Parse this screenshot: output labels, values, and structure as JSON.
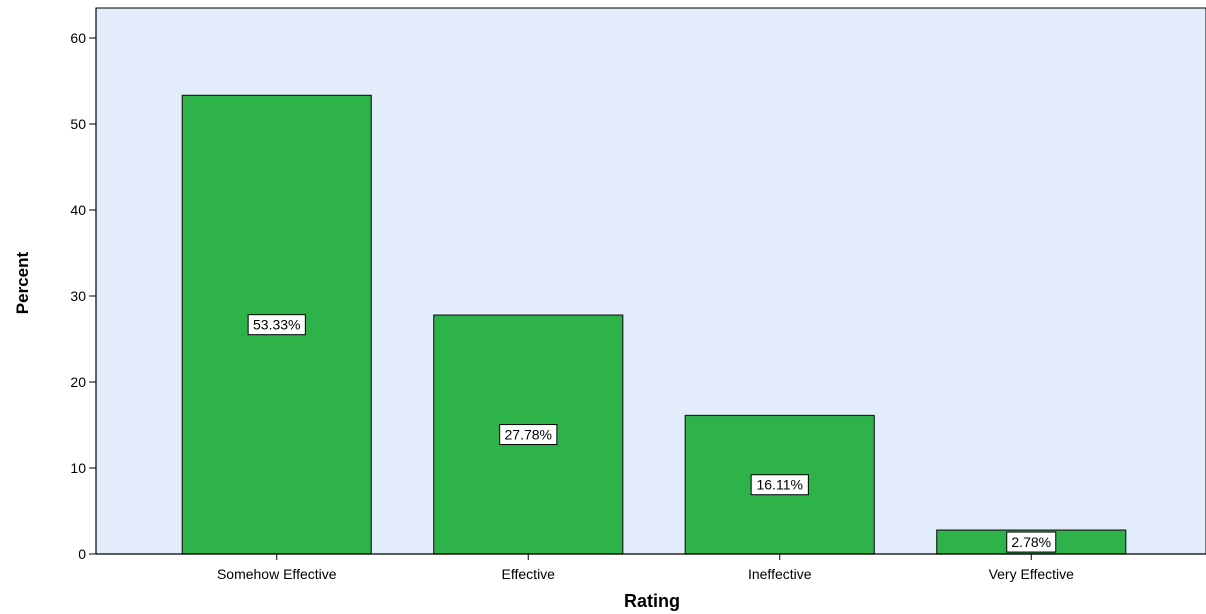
{
  "chart_data": {
    "type": "bar",
    "categories": [
      "Somehow Effective",
      "Effective",
      "Ineffective",
      "Very Effective"
    ],
    "values": [
      53.33,
      27.78,
      16.11,
      2.78
    ],
    "data_labels": [
      "53.33%",
      "27.78%",
      "16.11%",
      "2.78%"
    ],
    "xlabel": "Rating",
    "ylabel": "Percent",
    "ylim": [
      0,
      60
    ],
    "yticks": [
      0,
      10,
      20,
      30,
      40,
      50,
      60
    ],
    "ytick_labels": [
      "0",
      "10",
      "20",
      "30",
      "40",
      "50",
      "60"
    ],
    "grid": false,
    "legend": "none",
    "colors": {
      "plot_background": "#e3ecfa",
      "bar_fill": "#2db34a",
      "bar_stroke": "#1f1f1f",
      "label_background": "#ffffff"
    }
  }
}
